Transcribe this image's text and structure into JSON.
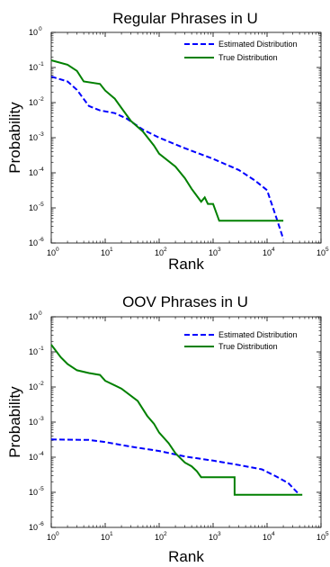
{
  "chart_data": [
    {
      "type": "line",
      "title": "Regular Phrases in U",
      "xlabel": "Rank",
      "ylabel": "Probability",
      "x_scale": "log",
      "y_scale": "log",
      "xlim": [
        1,
        100000
      ],
      "ylim": [
        1e-06,
        1
      ],
      "grid": false,
      "legend_position": "top-right",
      "series": [
        {
          "name": "Estimated Distribution",
          "color": "#0000ff",
          "style": "dashed",
          "points": [
            [
              1,
              0.055
            ],
            [
              2,
              0.04
            ],
            [
              3,
              0.023
            ],
            [
              5,
              0.008
            ],
            [
              8,
              0.006
            ],
            [
              15,
              0.005
            ],
            [
              25,
              0.0035
            ],
            [
              50,
              0.0017
            ],
            [
              100,
              0.001
            ],
            [
              300,
              0.0005
            ],
            [
              1000,
              0.00025
            ],
            [
              3000,
              0.00012
            ],
            [
              6000,
              6e-05
            ],
            [
              10000,
              3.2e-05
            ],
            [
              15000,
              5e-06
            ],
            [
              20000,
              1.3e-06
            ]
          ]
        },
        {
          "name": "True Distribution",
          "color": "#008000",
          "style": "solid",
          "points": [
            [
              1,
              0.16
            ],
            [
              2,
              0.12
            ],
            [
              3,
              0.08
            ],
            [
              4,
              0.04
            ],
            [
              8,
              0.034
            ],
            [
              10,
              0.022
            ],
            [
              15,
              0.013
            ],
            [
              20,
              0.007
            ],
            [
              30,
              0.003
            ],
            [
              50,
              0.0015
            ],
            [
              80,
              0.0006
            ],
            [
              100,
              0.00035
            ],
            [
              200,
              0.00015
            ],
            [
              300,
              7e-05
            ],
            [
              400,
              3.5e-05
            ],
            [
              500,
              2.2e-05
            ],
            [
              600,
              1.5e-05
            ],
            [
              700,
              2e-05
            ],
            [
              800,
              1.3e-05
            ],
            [
              1000,
              1.3e-05
            ],
            [
              1300,
              4.3e-06
            ],
            [
              6000,
              4.3e-06
            ],
            [
              20000,
              4.3e-06
            ]
          ]
        }
      ]
    },
    {
      "type": "line",
      "title": "OOV Phrases in U",
      "xlabel": "Rank",
      "ylabel": "Probability",
      "x_scale": "log",
      "y_scale": "log",
      "xlim": [
        1,
        100000
      ],
      "ylim": [
        1e-06,
        1
      ],
      "grid": false,
      "legend_position": "top-right",
      "series": [
        {
          "name": "Estimated Distribution",
          "color": "#0000ff",
          "style": "dashed",
          "points": [
            [
              1,
              0.00032
            ],
            [
              5,
              0.00031
            ],
            [
              10,
              0.00027
            ],
            [
              30,
              0.0002
            ],
            [
              100,
              0.00015
            ],
            [
              300,
              0.000105
            ],
            [
              1000,
              8e-05
            ],
            [
              3000,
              6e-05
            ],
            [
              8000,
              4.5e-05
            ],
            [
              15000,
              2.8e-05
            ],
            [
              25000,
              1.8e-05
            ],
            [
              40000,
              8.5e-06
            ]
          ]
        },
        {
          "name": "True Distribution",
          "color": "#008000",
          "style": "solid",
          "points": [
            [
              1,
              0.16
            ],
            [
              1.5,
              0.07
            ],
            [
              2,
              0.045
            ],
            [
              3,
              0.03
            ],
            [
              5,
              0.025
            ],
            [
              8,
              0.022
            ],
            [
              10,
              0.015
            ],
            [
              20,
              0.009
            ],
            [
              40,
              0.004
            ],
            [
              60,
              0.0015
            ],
            [
              80,
              0.0009
            ],
            [
              100,
              0.0005
            ],
            [
              150,
              0.00025
            ],
            [
              200,
              0.00013
            ],
            [
              300,
              7e-05
            ],
            [
              400,
              5.5e-05
            ],
            [
              500,
              4e-05
            ],
            [
              600,
              2.7e-05
            ],
            [
              2500,
              2.7e-05
            ],
            [
              2500,
              8.5e-06
            ],
            [
              45000,
              8.5e-06
            ]
          ]
        }
      ]
    }
  ]
}
